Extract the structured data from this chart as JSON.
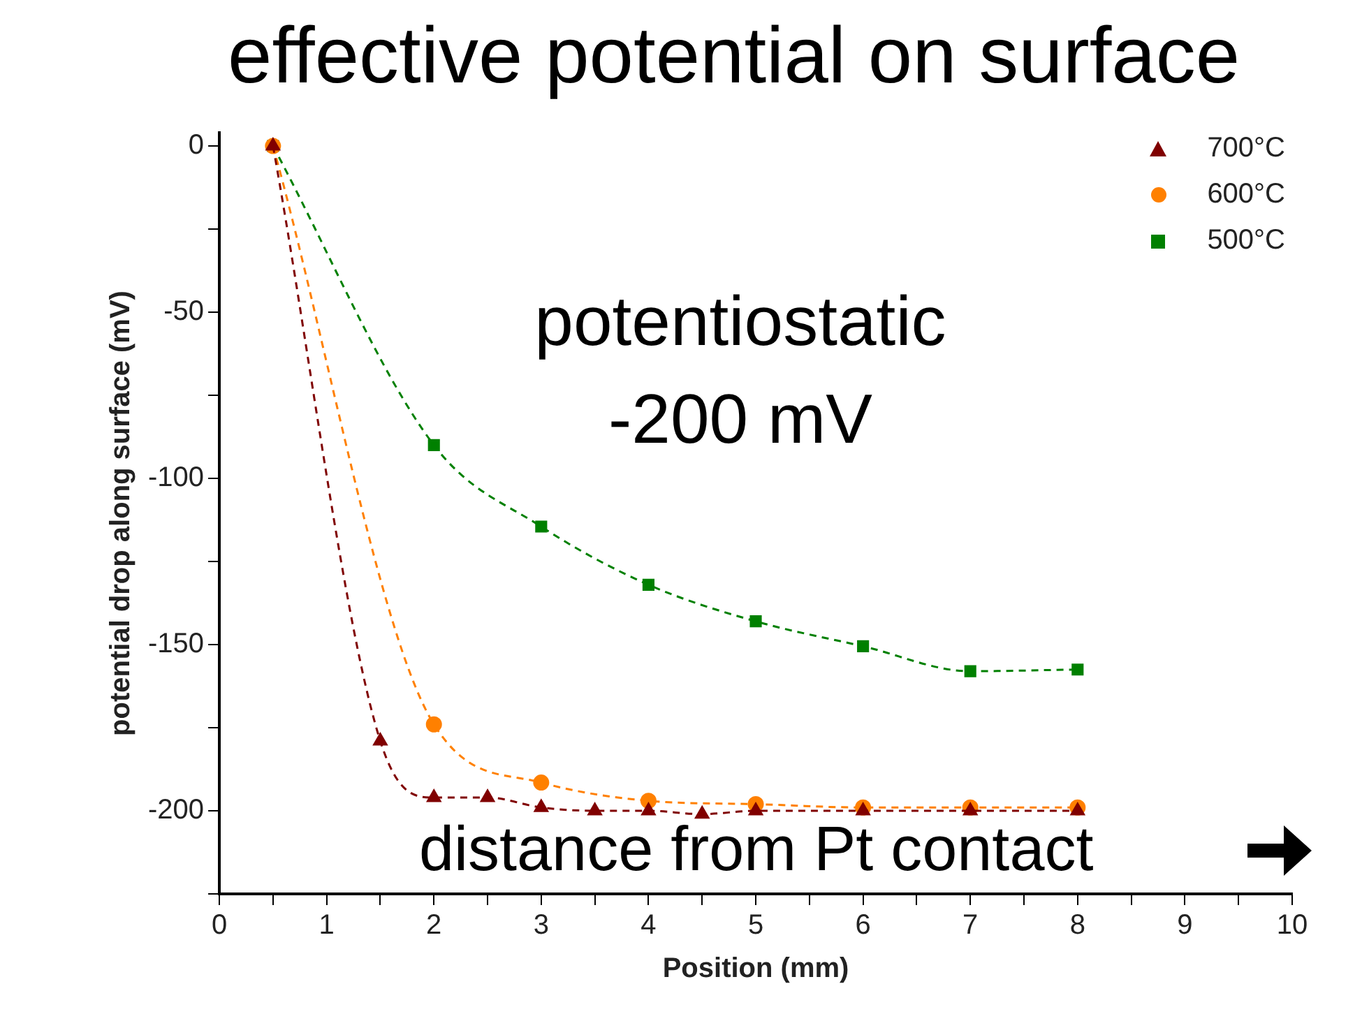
{
  "chart_data": {
    "type": "line",
    "title": "effective potential on surface",
    "xlabel": "Position (mm)",
    "ylabel": "potential drop along surface (mV)",
    "annotations": [
      "potentiostatic\n-200 mV",
      "distance from Pt contact"
    ],
    "xlim": [
      0,
      10
    ],
    "xticks": [
      0,
      {
        "value": 0.5,
        "label": null
      },
      1,
      {
        "value": 1.5,
        "label": null
      },
      2,
      {
        "value": 2.5,
        "label": null
      },
      3,
      {
        "value": 3.5,
        "label": null
      },
      4,
      {
        "value": 4.5,
        "label": null
      },
      5,
      {
        "value": 5.5,
        "label": null
      },
      6,
      {
        "value": 6.5,
        "label": null
      },
      7,
      {
        "value": 7.5,
        "label": null
      },
      8,
      {
        "value": 8.5,
        "label": null
      },
      9,
      {
        "value": 9.5,
        "label": null
      },
      10
    ],
    "ylim": [
      -225,
      4
    ],
    "yticks": [
      {
        "value": -225,
        "label": null
      },
      -200,
      {
        "value": -175,
        "label": null
      },
      -150,
      {
        "value": -125,
        "label": null
      },
      -100,
      {
        "value": -75,
        "label": null
      },
      -50,
      {
        "value": -25,
        "label": null
      },
      0
    ],
    "grid": false,
    "legend": "top right",
    "line_style": "dashed",
    "series": [
      {
        "name": "700°C",
        "color": "#800000",
        "marker": "triangle",
        "x": [
          0.5,
          1.5,
          2,
          2.5,
          3,
          3.5,
          4,
          4.5,
          5,
          6,
          7,
          8
        ],
        "values": [
          0,
          -179,
          -196,
          -196,
          -199,
          -200,
          -200,
          -201,
          -200,
          -200,
          -200,
          -200
        ]
      },
      {
        "name": "600°C",
        "color": "#ff8000",
        "marker": "circle",
        "x": [
          0.5,
          2,
          3,
          4,
          5,
          6,
          7,
          8
        ],
        "values": [
          0,
          -174,
          -191.5,
          -197,
          -198,
          -199,
          -199,
          -199
        ]
      },
      {
        "name": "500°C",
        "color": "#008000",
        "marker": "square",
        "x": [
          0.5,
          2,
          3,
          4,
          5,
          6,
          7,
          8
        ],
        "values": [
          0,
          -90,
          -114.5,
          -132,
          -143,
          -150.5,
          -158,
          -157.5
        ]
      }
    ]
  }
}
